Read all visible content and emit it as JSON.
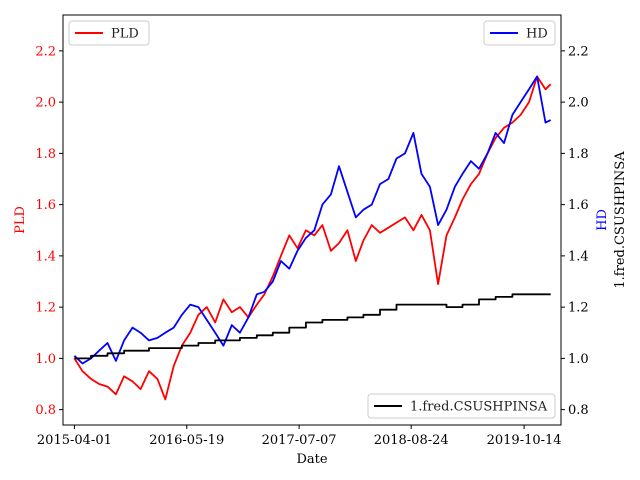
{
  "chart_data": {
    "type": "line",
    "xlabel": "Date",
    "x_ticks": [
      "2015-04-01",
      "2016-05-19",
      "2017-07-07",
      "2018-08-24",
      "2019-10-14"
    ],
    "x_range": [
      "2015-02-18",
      "2020-02-27"
    ],
    "left_axis": {
      "label": "PLD",
      "color": "#ff0000",
      "range": [
        0.74,
        2.34
      ],
      "ticks": [
        "0.8",
        "1.0",
        "1.2",
        "1.4",
        "1.6",
        "1.8",
        "2.0",
        "2.2"
      ]
    },
    "right_axis": {
      "label": "HD",
      "label2": "1.fred.CSUSHPINSA",
      "color": "#0000ff",
      "range": [
        0.74,
        2.34
      ],
      "ticks": [
        "0.8",
        "1.0",
        "1.2",
        "1.4",
        "1.6",
        "1.8",
        "2.0",
        "2.2"
      ]
    },
    "legend": {
      "left": {
        "label": "PLD",
        "placement": "top-left"
      },
      "right": {
        "label": "HD",
        "placement": "top-right"
      },
      "bottom": {
        "label": "1.fred.CSUSHPINSA",
        "placement": "lower-right"
      }
    },
    "series": [
      {
        "name": "PLD",
        "color": "#ff0000",
        "axis": "left",
        "points": [
          [
            "2015-04-01",
            1.0
          ],
          [
            "2015-05-01",
            0.95
          ],
          [
            "2015-06-01",
            0.92
          ],
          [
            "2015-07-01",
            0.9
          ],
          [
            "2015-08-01",
            0.89
          ],
          [
            "2015-09-01",
            0.86
          ],
          [
            "2015-10-01",
            0.93
          ],
          [
            "2015-11-01",
            0.91
          ],
          [
            "2015-12-01",
            0.88
          ],
          [
            "2016-01-01",
            0.95
          ],
          [
            "2016-02-01",
            0.92
          ],
          [
            "2016-03-01",
            0.84
          ],
          [
            "2016-04-01",
            0.97
          ],
          [
            "2016-05-01",
            1.05
          ],
          [
            "2016-06-01",
            1.1
          ],
          [
            "2016-07-01",
            1.17
          ],
          [
            "2016-08-01",
            1.2
          ],
          [
            "2016-09-01",
            1.14
          ],
          [
            "2016-10-01",
            1.23
          ],
          [
            "2016-11-01",
            1.18
          ],
          [
            "2016-12-01",
            1.2
          ],
          [
            "2017-01-01",
            1.16
          ],
          [
            "2017-02-01",
            1.21
          ],
          [
            "2017-03-01",
            1.25
          ],
          [
            "2017-04-01",
            1.32
          ],
          [
            "2017-05-01",
            1.4
          ],
          [
            "2017-06-01",
            1.48
          ],
          [
            "2017-07-01",
            1.43
          ],
          [
            "2017-08-01",
            1.5
          ],
          [
            "2017-09-01",
            1.48
          ],
          [
            "2017-10-01",
            1.52
          ],
          [
            "2017-11-01",
            1.42
          ],
          [
            "2017-12-01",
            1.45
          ],
          [
            "2018-01-01",
            1.5
          ],
          [
            "2018-02-01",
            1.38
          ],
          [
            "2018-03-01",
            1.46
          ],
          [
            "2018-04-01",
            1.52
          ],
          [
            "2018-05-01",
            1.49
          ],
          [
            "2018-06-01",
            1.51
          ],
          [
            "2018-07-01",
            1.53
          ],
          [
            "2018-08-01",
            1.55
          ],
          [
            "2018-09-01",
            1.5
          ],
          [
            "2018-10-01",
            1.56
          ],
          [
            "2018-11-01",
            1.5
          ],
          [
            "2018-12-01",
            1.29
          ],
          [
            "2019-01-01",
            1.48
          ],
          [
            "2019-02-01",
            1.55
          ],
          [
            "2019-03-01",
            1.62
          ],
          [
            "2019-04-01",
            1.68
          ],
          [
            "2019-05-01",
            1.72
          ],
          [
            "2019-06-01",
            1.8
          ],
          [
            "2019-07-01",
            1.86
          ],
          [
            "2019-08-01",
            1.9
          ],
          [
            "2019-09-01",
            1.92
          ],
          [
            "2019-10-01",
            1.95
          ],
          [
            "2019-11-01",
            2.0
          ],
          [
            "2019-12-01",
            2.1
          ],
          [
            "2020-01-01",
            2.05
          ],
          [
            "2020-01-20",
            2.07
          ]
        ]
      },
      {
        "name": "HD",
        "color": "#0000ff",
        "axis": "right",
        "points": [
          [
            "2015-04-01",
            1.01
          ],
          [
            "2015-05-01",
            0.98
          ],
          [
            "2015-06-01",
            1.0
          ],
          [
            "2015-07-01",
            1.03
          ],
          [
            "2015-08-01",
            1.06
          ],
          [
            "2015-09-01",
            0.99
          ],
          [
            "2015-10-01",
            1.07
          ],
          [
            "2015-11-01",
            1.12
          ],
          [
            "2015-12-01",
            1.1
          ],
          [
            "2016-01-01",
            1.07
          ],
          [
            "2016-02-01",
            1.08
          ],
          [
            "2016-03-01",
            1.1
          ],
          [
            "2016-04-01",
            1.12
          ],
          [
            "2016-05-01",
            1.17
          ],
          [
            "2016-06-01",
            1.21
          ],
          [
            "2016-07-01",
            1.2
          ],
          [
            "2016-08-01",
            1.15
          ],
          [
            "2016-09-01",
            1.1
          ],
          [
            "2016-10-01",
            1.05
          ],
          [
            "2016-11-01",
            1.13
          ],
          [
            "2016-12-01",
            1.1
          ],
          [
            "2017-01-01",
            1.16
          ],
          [
            "2017-02-01",
            1.25
          ],
          [
            "2017-03-01",
            1.26
          ],
          [
            "2017-04-01",
            1.3
          ],
          [
            "2017-05-01",
            1.38
          ],
          [
            "2017-06-01",
            1.35
          ],
          [
            "2017-07-01",
            1.42
          ],
          [
            "2017-08-01",
            1.47
          ],
          [
            "2017-09-01",
            1.5
          ],
          [
            "2017-10-01",
            1.6
          ],
          [
            "2017-11-01",
            1.64
          ],
          [
            "2017-12-01",
            1.75
          ],
          [
            "2018-01-01",
            1.65
          ],
          [
            "2018-02-01",
            1.55
          ],
          [
            "2018-03-01",
            1.58
          ],
          [
            "2018-04-01",
            1.6
          ],
          [
            "2018-05-01",
            1.68
          ],
          [
            "2018-06-01",
            1.7
          ],
          [
            "2018-07-01",
            1.78
          ],
          [
            "2018-08-01",
            1.8
          ],
          [
            "2018-09-01",
            1.88
          ],
          [
            "2018-10-01",
            1.72
          ],
          [
            "2018-11-01",
            1.67
          ],
          [
            "2018-12-01",
            1.52
          ],
          [
            "2019-01-01",
            1.58
          ],
          [
            "2019-02-01",
            1.67
          ],
          [
            "2019-03-01",
            1.72
          ],
          [
            "2019-04-01",
            1.77
          ],
          [
            "2019-05-01",
            1.74
          ],
          [
            "2019-06-01",
            1.8
          ],
          [
            "2019-07-01",
            1.88
          ],
          [
            "2019-08-01",
            1.84
          ],
          [
            "2019-09-01",
            1.95
          ],
          [
            "2019-10-01",
            2.0
          ],
          [
            "2019-11-01",
            2.05
          ],
          [
            "2019-12-01",
            2.1
          ],
          [
            "2020-01-01",
            1.92
          ],
          [
            "2020-01-20",
            1.93
          ]
        ]
      },
      {
        "name": "1.fred.CSUSHPINSA",
        "color": "#000000",
        "axis": "right",
        "step": true,
        "points": [
          [
            "2015-04-01",
            1.0
          ],
          [
            "2015-06-01",
            1.01
          ],
          [
            "2015-08-01",
            1.02
          ],
          [
            "2015-10-01",
            1.03
          ],
          [
            "2016-01-01",
            1.04
          ],
          [
            "2016-03-01",
            1.04
          ],
          [
            "2016-05-01",
            1.05
          ],
          [
            "2016-07-01",
            1.06
          ],
          [
            "2016-09-01",
            1.07
          ],
          [
            "2016-12-01",
            1.08
          ],
          [
            "2017-02-01",
            1.09
          ],
          [
            "2017-04-01",
            1.1
          ],
          [
            "2017-06-01",
            1.12
          ],
          [
            "2017-08-01",
            1.14
          ],
          [
            "2017-10-01",
            1.15
          ],
          [
            "2018-01-01",
            1.16
          ],
          [
            "2018-03-01",
            1.17
          ],
          [
            "2018-05-01",
            1.19
          ],
          [
            "2018-07-01",
            1.21
          ],
          [
            "2018-09-01",
            1.21
          ],
          [
            "2018-11-01",
            1.21
          ],
          [
            "2019-01-01",
            1.2
          ],
          [
            "2019-03-01",
            1.21
          ],
          [
            "2019-05-01",
            1.23
          ],
          [
            "2019-07-01",
            1.24
          ],
          [
            "2019-09-01",
            1.25
          ],
          [
            "2019-12-01",
            1.25
          ],
          [
            "2020-01-20",
            1.25
          ]
        ]
      }
    ]
  }
}
